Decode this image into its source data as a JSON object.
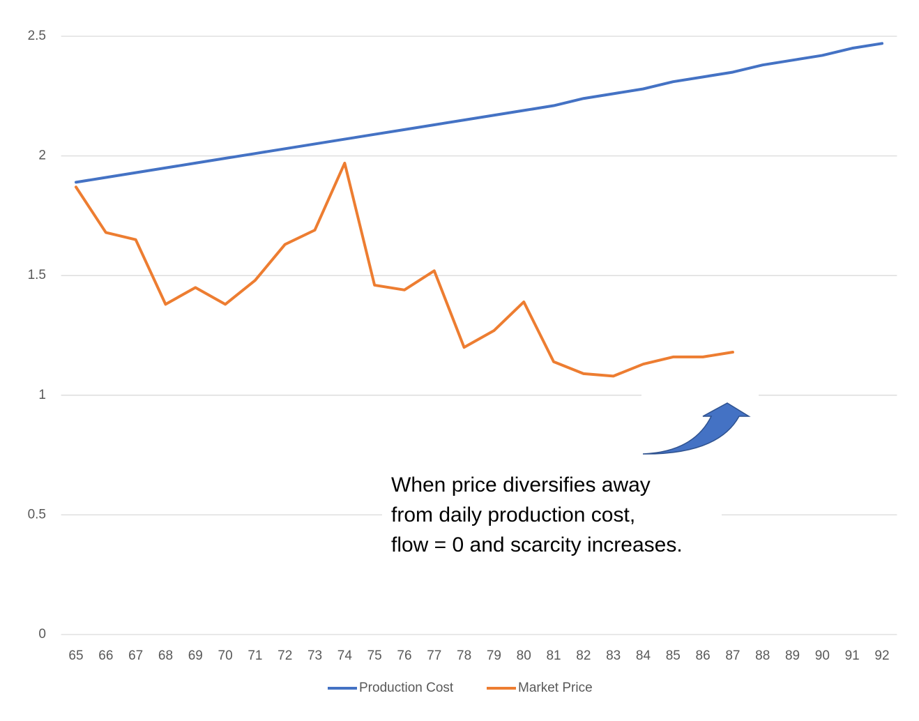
{
  "chart_data": {
    "type": "line",
    "categories": [
      "65",
      "66",
      "67",
      "68",
      "69",
      "70",
      "71",
      "72",
      "73",
      "74",
      "75",
      "76",
      "77",
      "78",
      "79",
      "80",
      "81",
      "82",
      "83",
      "84",
      "85",
      "86",
      "87",
      "88",
      "89",
      "90",
      "91",
      "92"
    ],
    "series": [
      {
        "name": "Production Cost",
        "color": "#4472c4",
        "values": [
          1.89,
          1.91,
          1.93,
          1.95,
          1.97,
          1.99,
          2.01,
          2.03,
          2.05,
          2.07,
          2.09,
          2.11,
          2.13,
          2.15,
          2.17,
          2.19,
          2.21,
          2.24,
          2.26,
          2.28,
          2.31,
          2.33,
          2.35,
          2.38,
          2.4,
          2.42,
          2.45,
          2.47
        ]
      },
      {
        "name": "Market Price",
        "color": "#ed7d31",
        "values": [
          1.87,
          1.68,
          1.65,
          1.38,
          1.45,
          1.38,
          1.48,
          1.63,
          1.69,
          1.97,
          1.46,
          1.44,
          1.52,
          1.2,
          1.27,
          1.39,
          1.14,
          1.09,
          1.08,
          1.13,
          1.16,
          1.16,
          1.18,
          null,
          null,
          null,
          null,
          null
        ]
      }
    ],
    "ylim": [
      0,
      2.5
    ],
    "yticks": [
      0,
      0.5,
      1,
      1.5,
      2,
      2.5
    ],
    "grid": true,
    "legend": "bottom",
    "annotation": [
      "When price diversifies away",
      "from daily production cost,",
      "flow = 0 and scarcity increases."
    ]
  }
}
